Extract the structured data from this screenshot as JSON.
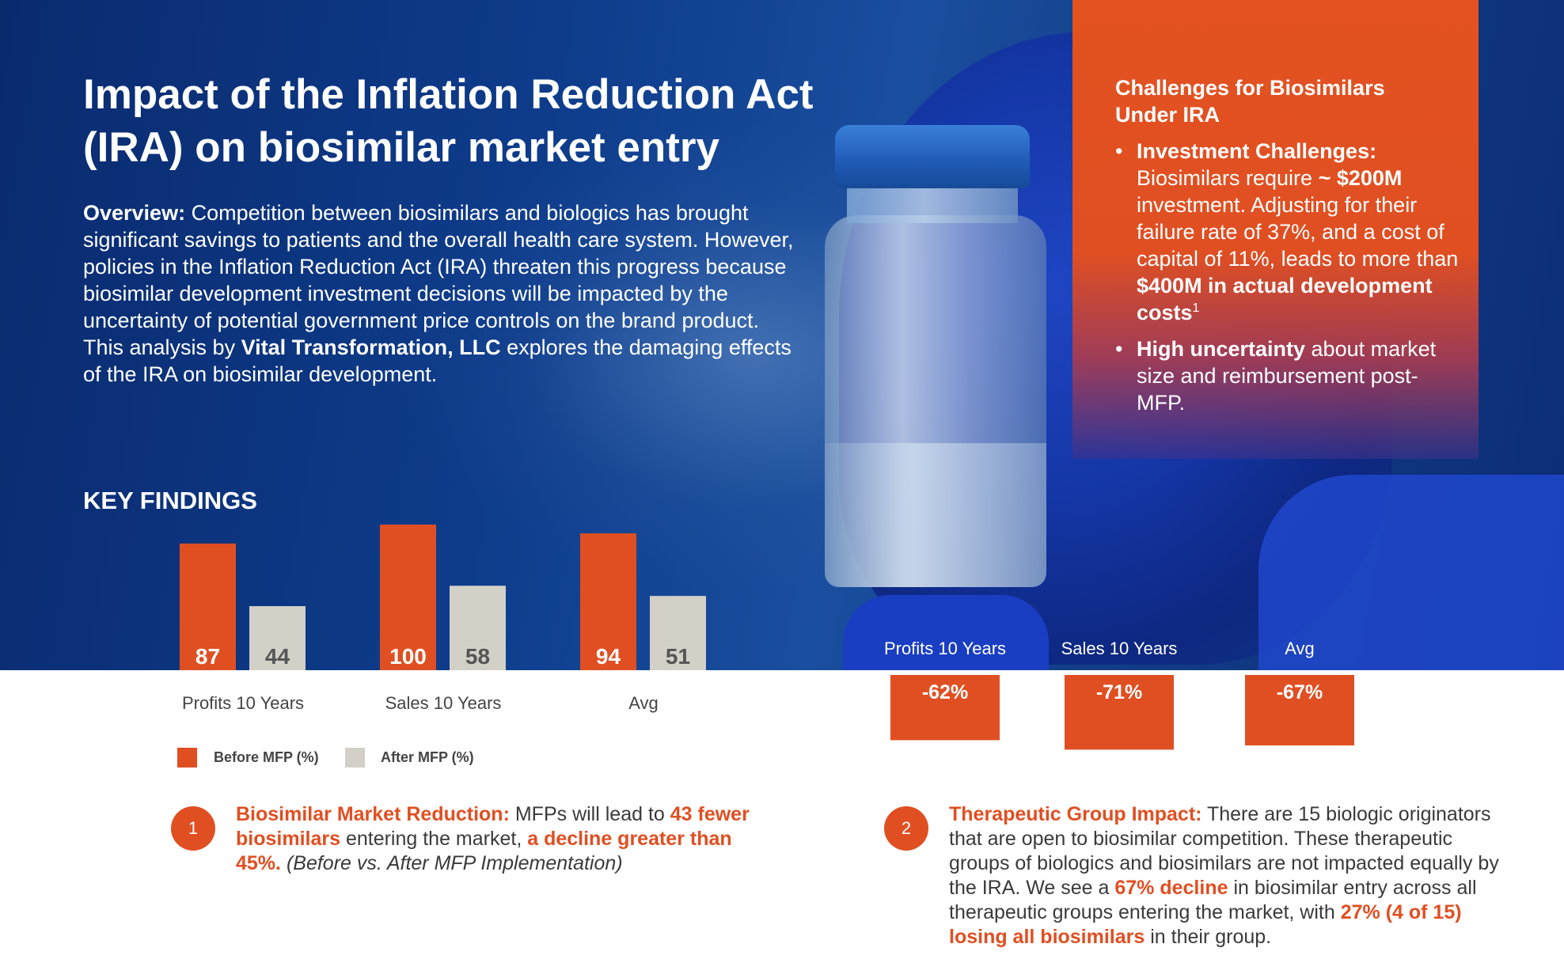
{
  "title": "Impact of the Inflation Reduction Act (IRA) on biosimilar market entry",
  "overview": {
    "label": "Overview:",
    "text_1": " Competition between biosimilars and biologics has brought significant savings to patients and the overall health care system. However, policies in the Inflation Reduction Act (IRA) threaten this progress because biosimilar development investment decisions will be impacted by the uncertainty of potential government price controls on the brand product. This analysis by ",
    "org": "Vital Transformation, LLC",
    "text_2": " explores the damaging effects of the IRA on biosimilar development."
  },
  "challenges": {
    "title": "Challenges for Biosimilars Under IRA",
    "item1": {
      "lead": "Investment Challenges:",
      "t1": " Biosimilars require ",
      "b1": "~ $200M",
      "t2": " investment. Adjusting for their failure rate of 37%, and a cost of capital of 11%, leads to more than ",
      "b2": "$400M in actual development costs",
      "sup": "1"
    },
    "item2": {
      "lead": "High uncertainty",
      "t1": " about market size and reimbursement post-MFP."
    }
  },
  "key_findings_label": "KEY FINDINGS",
  "legend": {
    "before": "Before MFP (%)",
    "after": "After MFP (%)"
  },
  "colors": {
    "orange": "#e04f22",
    "gray": "#d3d0c8",
    "navy": "#0e3d8c"
  },
  "chart_data": [
    {
      "type": "bar",
      "categories": [
        "Profits 10 Years",
        "Sales 10 Years",
        "Avg"
      ],
      "series": [
        {
          "name": "Before MFP (%)",
          "values": [
            87,
            100,
            94
          ]
        },
        {
          "name": "After MFP (%)",
          "values": [
            44,
            58,
            51
          ]
        }
      ],
      "ylim": [
        0,
        100
      ],
      "legend": "bottom-left"
    },
    {
      "type": "bar",
      "categories": [
        "Profits 10 Years",
        "Sales 10 Years",
        "Avg"
      ],
      "values": [
        -62,
        -71,
        -67
      ],
      "labels": [
        "-62%",
        "-71%",
        "-67%"
      ]
    }
  ],
  "findings": [
    {
      "number": "1",
      "lead": "Biosimilar Market Reduction:",
      "t1": " MFPs will lead to ",
      "h1": "43 fewer biosimilars",
      "t2": " entering the market, ",
      "h2": "a decline greater than 45%.",
      "t3": " ",
      "italic": "(Before vs. After MFP Implementation)"
    },
    {
      "number": "2",
      "lead": "Therapeutic Group Impact:",
      "t1": " There are 15 biologic originators that are open to biosimilar competition. These therapeutic groups of biologics and biosimilars are not impacted equally by the IRA. We see a ",
      "h1": "67% decline",
      "t2": " in biosimilar entry across all therapeutic groups entering the market, with ",
      "h2": "27% (4 of 15) losing all biosimilars",
      "t3": " in their group."
    }
  ]
}
